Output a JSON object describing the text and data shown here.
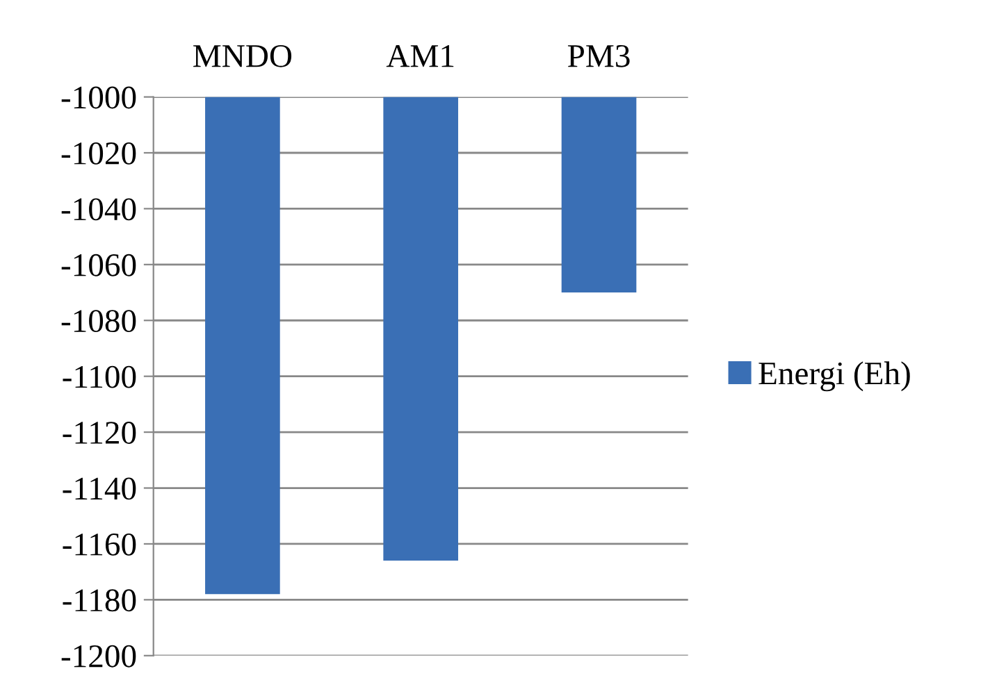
{
  "chart_data": {
    "type": "bar",
    "categories": [
      "MNDO",
      "AM1",
      "PM3"
    ],
    "series": [
      {
        "name": "Energi (Eh)",
        "color": "#3a6fb5",
        "values": [
          -1178,
          -1166,
          -1070
        ]
      }
    ],
    "ylim": [
      -1200,
      -1000
    ],
    "yticks": [
      -1200,
      -1180,
      -1160,
      -1140,
      -1120,
      -1100,
      -1080,
      -1060,
      -1040,
      -1020,
      -1000
    ],
    "grid": "y",
    "legend": "right"
  }
}
